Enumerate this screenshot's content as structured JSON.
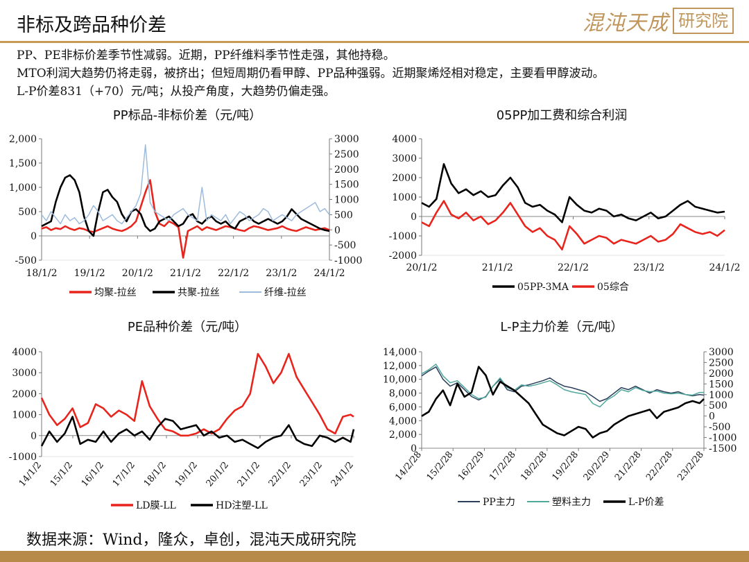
{
  "header": {
    "title": "非标及跨品种价差",
    "logo_text": "混沌天成",
    "logo_box_text": "研究院"
  },
  "summary": [
    "PP、PE非标价差季节性减弱。近期，PP纤维料季节性走强，其他持稳。",
    "MTO利润大趋势仍将走弱，被挤出；但短周期仍看甲醇、PP品种强弱。近期聚烯烃相对稳定，主要看甲醇波动。",
    "L-P价差831（+70）元/吨；从投产角度，大趋势仍偏走强。"
  ],
  "source": "数据来源：Wind，隆众，卓创，混沌天成研究院",
  "colors": {
    "red": "#e8241c",
    "black": "#000000",
    "lightblue": "#9dbbdc",
    "navy": "#2b3f5c",
    "teal": "#4fa89a",
    "gold": "#c79b54"
  },
  "chart_data": [
    {
      "type": "line",
      "title": "PP标品-非标价差（元/吨）",
      "x_ticks": [
        "18/1/2",
        "19/1/2",
        "20/1/2",
        "21/1/2",
        "22/1/2",
        "23/1/2",
        "24/1/2"
      ],
      "x": [
        2018.0,
        2018.1,
        2018.2,
        2018.3,
        2018.4,
        2018.5,
        2018.6,
        2018.7,
        2018.8,
        2018.9,
        2019.0,
        2019.1,
        2019.2,
        2019.3,
        2019.4,
        2019.5,
        2019.6,
        2019.7,
        2019.8,
        2019.9,
        2020.0,
        2020.1,
        2020.2,
        2020.3,
        2020.4,
        2020.5,
        2020.6,
        2020.7,
        2020.8,
        2020.9,
        2021.0,
        2021.1,
        2021.2,
        2021.3,
        2021.4,
        2021.5,
        2021.6,
        2021.7,
        2021.8,
        2021.9,
        2022.0,
        2022.1,
        2022.2,
        2022.3,
        2022.4,
        2022.5,
        2022.6,
        2022.7,
        2022.8,
        2022.9,
        2023.0,
        2023.1,
        2023.2,
        2023.3,
        2023.4,
        2023.5,
        2023.6,
        2023.7,
        2023.8,
        2023.9,
        2024.0,
        2024.1
      ],
      "ylim_left": [
        -500,
        2000
      ],
      "y_ticks_left": [
        "-500",
        "0",
        "500",
        "1,000",
        "1,500",
        "2,000"
      ],
      "ylim_right": [
        -1000,
        3000
      ],
      "y_ticks_right": [
        "-1000",
        "-500",
        "0",
        "500",
        "1000",
        "1500",
        "2000",
        "2500",
        "3000"
      ],
      "series": [
        {
          "name": "均聚-拉丝",
          "axis": "left",
          "color": "#e8241c",
          "values": [
            150,
            180,
            120,
            160,
            140,
            200,
            150,
            120,
            160,
            140,
            100,
            80,
            120,
            160,
            200,
            150,
            120,
            100,
            140,
            200,
            300,
            600,
            900,
            1150,
            500,
            250,
            200,
            300,
            250,
            180,
            -450,
            100,
            150,
            200,
            120,
            180,
            150,
            120,
            160,
            200,
            180,
            150,
            120,
            100,
            160,
            200,
            180,
            150,
            120,
            140,
            160,
            200,
            150,
            120,
            100,
            140,
            180,
            150,
            120,
            140,
            160,
            120
          ]
        },
        {
          "name": "共聚-拉丝",
          "axis": "left",
          "color": "#000000",
          "values": [
            200,
            250,
            300,
            700,
            1000,
            1200,
            1250,
            1150,
            900,
            400,
            100,
            0,
            500,
            900,
            950,
            800,
            700,
            450,
            300,
            500,
            550,
            450,
            200,
            100,
            150,
            300,
            350,
            400,
            300,
            200,
            250,
            400,
            450,
            300,
            250,
            350,
            400,
            300,
            250,
            300,
            200,
            150,
            300,
            350,
            400,
            300,
            250,
            300,
            350,
            300,
            250,
            300,
            400,
            550,
            450,
            350,
            300,
            250,
            200,
            150,
            120,
            100
          ]
        },
        {
          "name": "纤维-拉丝",
          "axis": "right",
          "color": "#9dbbdc",
          "values": [
            500,
            300,
            600,
            400,
            200,
            500,
            300,
            400,
            200,
            300,
            500,
            800,
            600,
            300,
            400,
            500,
            300,
            200,
            400,
            600,
            800,
            1200,
            2800,
            900,
            600,
            500,
            400,
            300,
            500,
            600,
            700,
            500,
            400,
            300,
            1400,
            300,
            500,
            400,
            300,
            500,
            200,
            400,
            600,
            500,
            300,
            400,
            500,
            700,
            600,
            300,
            400,
            500,
            400,
            300,
            500,
            600,
            700,
            800,
            900,
            600,
            700,
            500
          ]
        }
      ],
      "legend": "bottom"
    },
    {
      "type": "line",
      "title": "05PP加工费和综合利润",
      "x_ticks": [
        "20/1/2",
        "21/1/2",
        "22/1/2",
        "23/1/2",
        "24/1/2"
      ],
      "x": [
        2020.0,
        2020.1,
        2020.2,
        2020.3,
        2020.4,
        2020.5,
        2020.6,
        2020.7,
        2020.8,
        2020.9,
        2021.0,
        2021.1,
        2021.2,
        2021.3,
        2021.4,
        2021.5,
        2021.6,
        2021.7,
        2021.8,
        2021.9,
        2022.0,
        2022.1,
        2022.2,
        2022.3,
        2022.4,
        2022.5,
        2022.6,
        2022.7,
        2022.8,
        2022.9,
        2023.0,
        2023.1,
        2023.2,
        2023.3,
        2023.4,
        2023.5,
        2023.6,
        2023.7,
        2023.8,
        2023.9,
        2024.0,
        2024.1
      ],
      "ylim": [
        -2000,
        4000
      ],
      "y_ticks": [
        "-2000",
        "-1000",
        "0",
        "1000",
        "2000",
        "3000",
        "4000"
      ],
      "series": [
        {
          "name": "05PP-3MA",
          "color": "#000000",
          "values": [
            700,
            500,
            900,
            2700,
            1700,
            1200,
            1400,
            1100,
            1300,
            1000,
            1100,
            1600,
            2000,
            1500,
            700,
            500,
            600,
            300,
            100,
            -300,
            1000,
            600,
            300,
            200,
            400,
            300,
            0,
            100,
            -100,
            -200,
            0,
            200,
            -100,
            0,
            300,
            600,
            800,
            500,
            400,
            300,
            200,
            250
          ]
        },
        {
          "name": "05综合",
          "color": "#e8241c",
          "values": [
            -300,
            -500,
            200,
            800,
            100,
            -100,
            200,
            -200,
            0,
            -400,
            -200,
            200,
            700,
            100,
            -500,
            -800,
            -600,
            -1000,
            -1200,
            -1700,
            -500,
            -900,
            -1400,
            -1200,
            -1000,
            -1100,
            -1400,
            -1200,
            -1300,
            -1400,
            -1200,
            -1000,
            -1300,
            -1200,
            -900,
            -400,
            -600,
            -800,
            -900,
            -800,
            -1000,
            -700
          ]
        }
      ],
      "legend": "bottom"
    },
    {
      "type": "line",
      "title": "PE品种价差（元/吨）",
      "x_ticks": [
        "14/1/2",
        "15/1/2",
        "16/1/2",
        "17/1/2",
        "18/1/2",
        "19/1/2",
        "20/1/2",
        "21/1/2",
        "22/1/2",
        "23/1/2",
        "24/1/2"
      ],
      "x": [
        2014.0,
        2014.25,
        2014.5,
        2014.75,
        2015.0,
        2015.25,
        2015.5,
        2015.75,
        2016.0,
        2016.25,
        2016.5,
        2016.75,
        2017.0,
        2017.25,
        2017.5,
        2017.75,
        2018.0,
        2018.25,
        2018.5,
        2018.75,
        2019.0,
        2019.25,
        2019.5,
        2019.75,
        2020.0,
        2020.25,
        2020.5,
        2020.75,
        2021.0,
        2021.25,
        2021.5,
        2021.75,
        2022.0,
        2022.25,
        2022.5,
        2022.75,
        2023.0,
        2023.25,
        2023.5,
        2023.75,
        2024.0,
        2024.1
      ],
      "ylim": [
        -1000,
        4000
      ],
      "y_ticks": [
        "-1000",
        "0",
        "1000",
        "2000",
        "3000",
        "4000"
      ],
      "series": [
        {
          "name": "LD膜-LL",
          "color": "#e8241c",
          "values": [
            1800,
            1000,
            500,
            800,
            1300,
            400,
            600,
            1500,
            1300,
            900,
            1200,
            1000,
            700,
            2600,
            1400,
            800,
            300,
            200,
            0,
            0,
            100,
            300,
            100,
            300,
            800,
            1200,
            1400,
            2000,
            3900,
            3300,
            2500,
            3000,
            3900,
            2800,
            2200,
            1600,
            1000,
            300,
            100,
            900,
            1000,
            900
          ]
        },
        {
          "name": "HD注塑-LL",
          "color": "#000000",
          "values": [
            -500,
            200,
            -300,
            100,
            900,
            -400,
            -200,
            -300,
            200,
            -300,
            100,
            300,
            0,
            200,
            -200,
            400,
            800,
            700,
            300,
            400,
            500,
            0,
            200,
            -100,
            0,
            -300,
            -200,
            -400,
            -600,
            -300,
            -100,
            0,
            500,
            -200,
            -400,
            -500,
            0,
            -100,
            -300,
            -100,
            -300,
            300
          ]
        }
      ],
      "legend": "bottom"
    },
    {
      "type": "line",
      "title": "L-P主力价差（元/吨）",
      "x_ticks": [
        "14/2/28",
        "15/2/28",
        "16/2/29",
        "17/2/28",
        "18/2/28",
        "19/2/28",
        "20/2/29",
        "21/2/28",
        "22/2/28",
        "23/2/28"
      ],
      "x": [
        2014.2,
        2014.45,
        2014.7,
        2014.95,
        2015.2,
        2015.45,
        2015.7,
        2015.95,
        2016.2,
        2016.45,
        2016.7,
        2016.95,
        2017.2,
        2017.45,
        2017.7,
        2017.95,
        2018.2,
        2018.45,
        2018.7,
        2018.95,
        2019.2,
        2019.45,
        2019.7,
        2019.95,
        2020.2,
        2020.45,
        2020.7,
        2020.95,
        2021.2,
        2021.45,
        2021.7,
        2021.95,
        2022.2,
        2022.45,
        2022.7,
        2022.95,
        2023.2,
        2023.45,
        2023.7,
        2023.95,
        2024.1
      ],
      "ylim_left": [
        0,
        14000
      ],
      "y_ticks_left": [
        "0",
        "2,000",
        "4,000",
        "6,000",
        "8,000",
        "10,000",
        "12,000",
        "14,000"
      ],
      "ylim_right": [
        -1500,
        3000
      ],
      "y_ticks_right": [
        "-1500",
        "-1000",
        "-500",
        "0",
        "500",
        "1000",
        "1500",
        "2000",
        "2500",
        "3000"
      ],
      "series": [
        {
          "name": "PP主力",
          "axis": "left",
          "color": "#2b3f5c",
          "values": [
            10500,
            11200,
            11800,
            10000,
            9000,
            9500,
            8500,
            7500,
            7000,
            7500,
            9000,
            10000,
            8500,
            8200,
            9000,
            9200,
            9500,
            9800,
            10200,
            9500,
            9000,
            8800,
            8500,
            8200,
            7500,
            6800,
            7200,
            8000,
            8800,
            8500,
            9000,
            8500,
            8000,
            8500,
            8200,
            8000,
            8200,
            7800,
            7600,
            7800,
            7700
          ]
        },
        {
          "name": "塑料主力",
          "axis": "left",
          "color": "#4fa89a",
          "values": [
            10800,
            11400,
            12200,
            10500,
            9500,
            9800,
            8800,
            7800,
            7200,
            7400,
            9000,
            10200,
            8800,
            8400,
            9200,
            9000,
            9200,
            9500,
            9800,
            9200,
            8500,
            8200,
            8000,
            7800,
            6500,
            6000,
            7000,
            7600,
            8500,
            8200,
            8800,
            8400,
            8200,
            8300,
            8000,
            7900,
            8000,
            7800,
            7700,
            8100,
            8100
          ]
        },
        {
          "name": "L-P价差",
          "axis": "right",
          "color": "#000000",
          "values": [
            0,
            200,
            800,
            1200,
            500,
            1500,
            900,
            1100,
            2300,
            1900,
            1000,
            1600,
            1400,
            1200,
            900,
            600,
            100,
            -400,
            -600,
            -800,
            -900,
            -700,
            -500,
            -600,
            -1000,
            -800,
            -700,
            -400,
            -200,
            0,
            100,
            200,
            300,
            -100,
            200,
            300,
            400,
            600,
            700,
            600,
            800
          ]
        }
      ],
      "legend": "bottom"
    }
  ]
}
